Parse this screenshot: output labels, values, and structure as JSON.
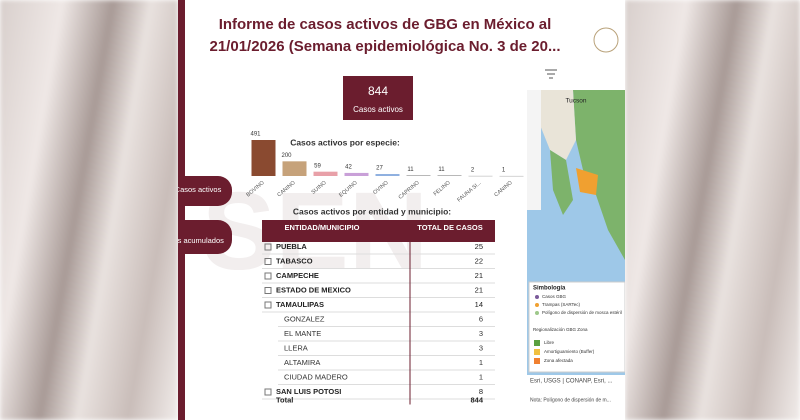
{
  "header": {
    "title_line1": "Informe de casos activos de GBG en México al",
    "title_line2": "21/01/2026 (Semana epidemiológica No. 3 de 20..."
  },
  "kpi": {
    "value": "844",
    "label": "Casos activos"
  },
  "buttons": [
    "Casos activos",
    "Casos acumulados"
  ],
  "chart_data": {
    "type": "bar",
    "title": "Casos activos por especie:",
    "categories": [
      "BOVINO",
      "CANINO",
      "SUINO",
      "EQUINO",
      "OVINO",
      "CAPRINO",
      "FELINO",
      "FAUNA SI...",
      "CANINO"
    ],
    "values": [
      491,
      200,
      59,
      42,
      27,
      11,
      11,
      2,
      1
    ],
    "colors": [
      "#8a4a30",
      "#c6a27a",
      "#e8a0a8",
      "#c9a0d8",
      "#8fb0e0",
      "#a8a8a8",
      "#a8a8a8",
      "#a8a8a8",
      "#a8a8a8"
    ]
  },
  "table": {
    "title": "Casos activos por entidad y municipio:",
    "columns": [
      "ENTIDAD/MUNICIPIO",
      "TOTAL DE CASOS"
    ],
    "rows": [
      {
        "entity": "PUEBLA",
        "total": 25
      },
      {
        "entity": "TABASCO",
        "total": 22
      },
      {
        "entity": "CAMPECHE",
        "total": 21
      },
      {
        "entity": "ESTADO DE MEXICO",
        "total": 21
      },
      {
        "entity": "TAMAULIPAS",
        "total": 14,
        "municipios": [
          {
            "name": "GONZALEZ",
            "total": 6
          },
          {
            "name": "EL MANTE",
            "total": 3
          },
          {
            "name": "LLERA",
            "total": 3
          },
          {
            "name": "ALTAMIRA",
            "total": 1
          },
          {
            "name": "CIUDAD MADERO",
            "total": 1
          }
        ]
      },
      {
        "entity": "SAN LUIS POTOSI",
        "total": 8
      }
    ],
    "total_label": "Total",
    "total": 844
  },
  "map": {
    "place": "Tucson",
    "legend_title": "Simbología",
    "legend_items": [
      "Casos GBG",
      "Trampas (SARTec)",
      "Polígono de dispersión de mosca estéril"
    ],
    "zone_title": "Regionalización GBG Zona",
    "zones": [
      "Libre",
      "Amortiguamiento (Buffer)",
      "Zona afectada"
    ],
    "attribution": "Esri, USGS | CONANP, Esri, ...",
    "note": "Nota: Polígono de dispersión de m..."
  }
}
